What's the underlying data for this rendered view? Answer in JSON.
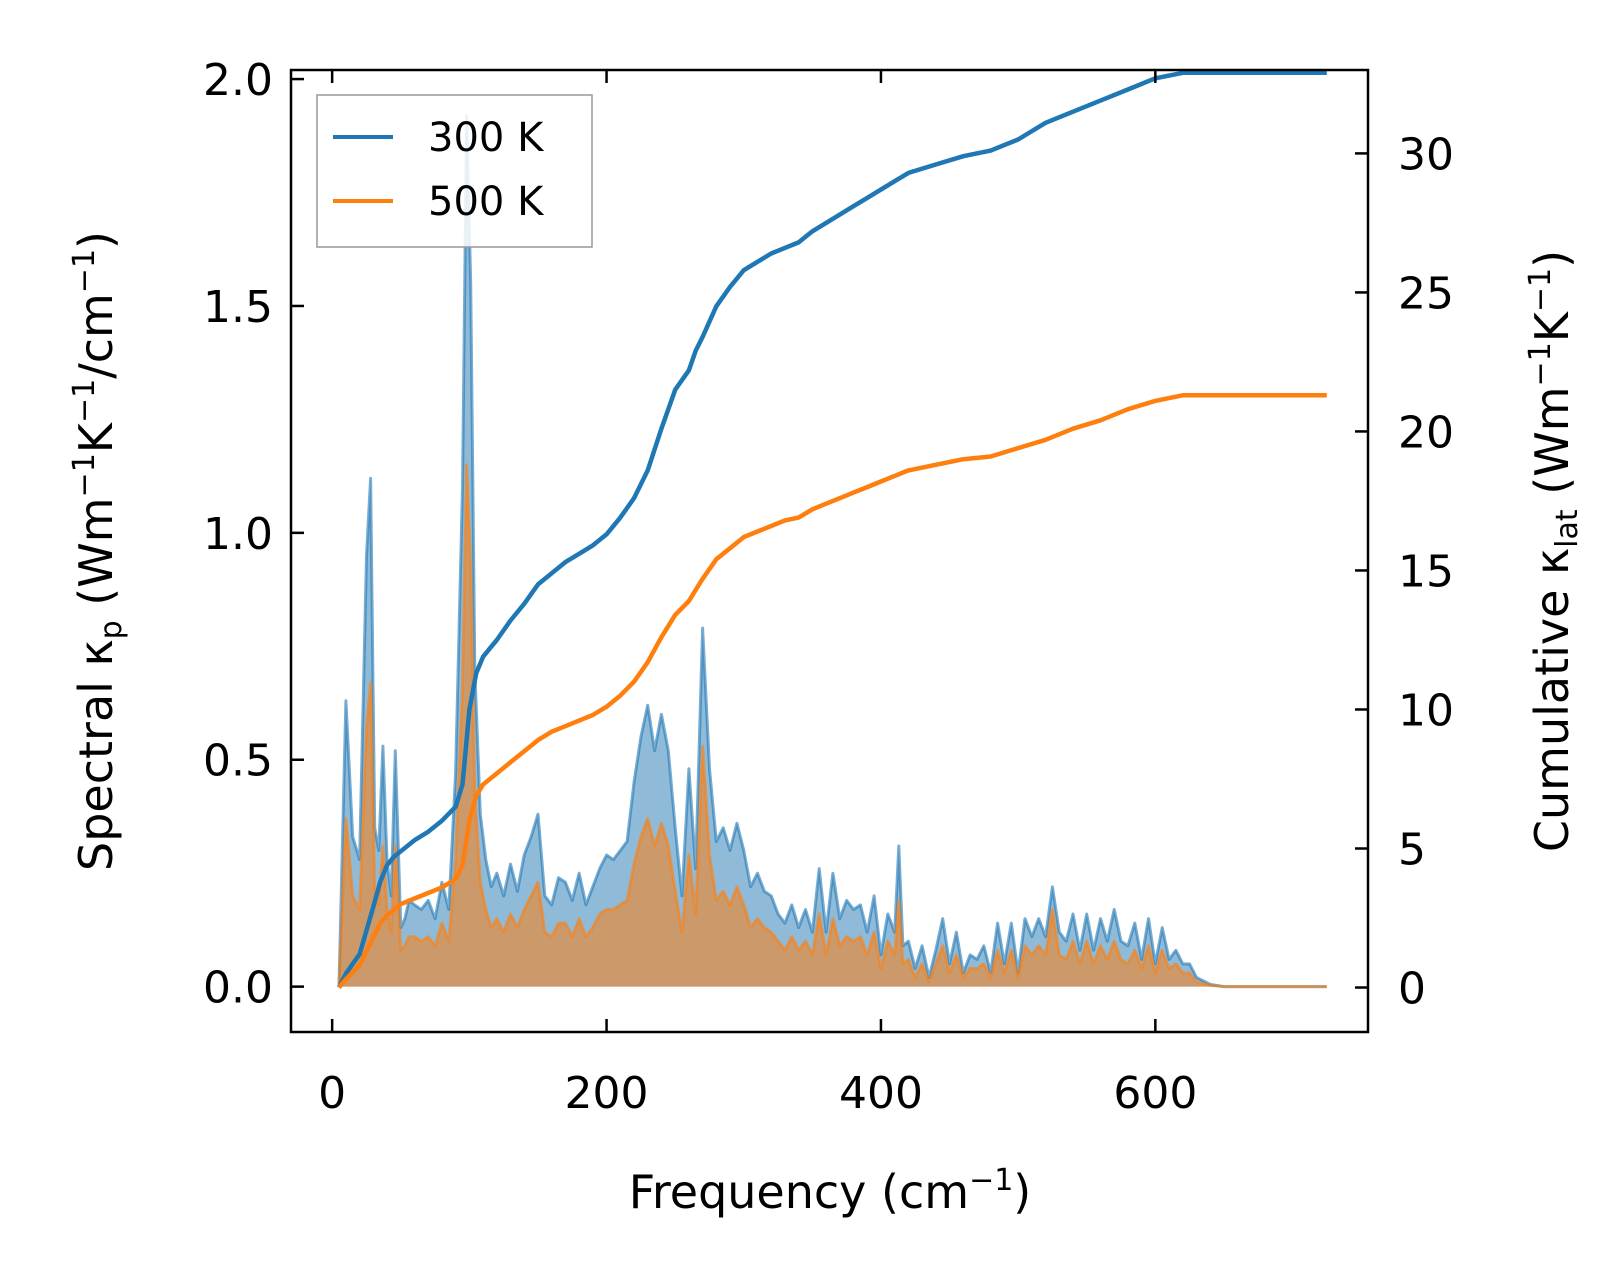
{
  "chart_data": {
    "type": "line",
    "title": "",
    "xlabel": "Frequency (cm",
    "xlabel_sup": "−1",
    "xlabel_end": ")",
    "ylabel_left": {
      "t1": "Spectral κ",
      "t1_sub": "p",
      "t2": " (Wm",
      "t2_sup": "−1",
      "t3": "K",
      "t3_sup": "−1",
      "t4": "/cm",
      "t4_sup": "−1",
      "t5": ")"
    },
    "ylabel_right": {
      "t1": "Cumulative κ",
      "t1_sub": "lat",
      "t2": " (Wm",
      "t2_sup": "−1",
      "t3": "K",
      "t3_sup": "−1",
      "t4": ")"
    },
    "xlim": [
      -30,
      755
    ],
    "ylim_left": [
      -0.1,
      2.02
    ],
    "ylim_right": [
      -1.6,
      33.0
    ],
    "x_ticks": [
      0,
      200,
      400,
      600
    ],
    "x_tick_labels": [
      "0",
      "200",
      "400",
      "600"
    ],
    "y_left_ticks": [
      0.0,
      0.5,
      1.0,
      1.5,
      2.0
    ],
    "y_left_tick_labels": [
      "0.0",
      "0.5",
      "1.0",
      "1.5",
      "2.0"
    ],
    "y_right_ticks": [
      0,
      5,
      10,
      15,
      20,
      25,
      30
    ],
    "y_right_tick_labels": [
      "0",
      "5",
      "10",
      "15",
      "20",
      "25",
      "30"
    ],
    "legend": {
      "position": "top-left",
      "entries": [
        {
          "label": "300 K",
          "color": "#1f77b4"
        },
        {
          "label": "500 K",
          "color": "#ff7f0e"
        }
      ]
    },
    "spectral_series": [
      {
        "name": "300 K",
        "color": "#1f77b4",
        "fill_color": "#1f77b4",
        "x": [
          5,
          10,
          15,
          20,
          25,
          28,
          31,
          34,
          37,
          40,
          43,
          46,
          50,
          53,
          56,
          60,
          65,
          70,
          75,
          80,
          85,
          90,
          95,
          98,
          101,
          104,
          108,
          112,
          116,
          120,
          125,
          130,
          135,
          140,
          145,
          150,
          155,
          160,
          165,
          170,
          175,
          180,
          185,
          190,
          195,
          200,
          205,
          210,
          215,
          220,
          225,
          230,
          235,
          240,
          245,
          250,
          255,
          260,
          265,
          270,
          275,
          280,
          285,
          290,
          295,
          300,
          305,
          310,
          315,
          320,
          325,
          330,
          335,
          340,
          345,
          350,
          355,
          360,
          365,
          370,
          375,
          380,
          385,
          390,
          395,
          400,
          405,
          410,
          413,
          416,
          420,
          425,
          430,
          435,
          440,
          445,
          450,
          455,
          460,
          465,
          470,
          475,
          480,
          485,
          490,
          495,
          500,
          505,
          510,
          515,
          520,
          525,
          530,
          535,
          540,
          545,
          550,
          555,
          560,
          565,
          570,
          575,
          580,
          585,
          590,
          595,
          600,
          605,
          610,
          615,
          620,
          625,
          630,
          640,
          650,
          660,
          680,
          700,
          725
        ],
        "values": [
          0.0,
          0.63,
          0.33,
          0.28,
          0.95,
          1.12,
          0.35,
          0.3,
          0.53,
          0.28,
          0.2,
          0.52,
          0.13,
          0.15,
          0.19,
          0.18,
          0.17,
          0.19,
          0.15,
          0.23,
          0.17,
          0.47,
          1.1,
          1.92,
          1.55,
          0.7,
          0.38,
          0.28,
          0.22,
          0.25,
          0.2,
          0.27,
          0.21,
          0.29,
          0.33,
          0.38,
          0.2,
          0.18,
          0.24,
          0.23,
          0.19,
          0.25,
          0.18,
          0.22,
          0.26,
          0.29,
          0.28,
          0.3,
          0.32,
          0.45,
          0.55,
          0.62,
          0.52,
          0.6,
          0.52,
          0.35,
          0.2,
          0.48,
          0.26,
          0.79,
          0.48,
          0.32,
          0.35,
          0.3,
          0.36,
          0.3,
          0.22,
          0.25,
          0.21,
          0.2,
          0.16,
          0.14,
          0.18,
          0.13,
          0.17,
          0.12,
          0.26,
          0.12,
          0.25,
          0.15,
          0.19,
          0.17,
          0.18,
          0.12,
          0.2,
          0.07,
          0.16,
          0.12,
          0.31,
          0.09,
          0.1,
          0.04,
          0.09,
          0.02,
          0.08,
          0.15,
          0.05,
          0.12,
          0.03,
          0.07,
          0.06,
          0.09,
          0.03,
          0.14,
          0.05,
          0.14,
          0.03,
          0.15,
          0.11,
          0.15,
          0.11,
          0.22,
          0.12,
          0.1,
          0.16,
          0.08,
          0.16,
          0.08,
          0.15,
          0.1,
          0.17,
          0.1,
          0.09,
          0.14,
          0.06,
          0.15,
          0.05,
          0.13,
          0.06,
          0.08,
          0.05,
          0.05,
          0.02,
          0.005,
          0.0,
          0.0,
          0.0,
          0.0,
          0.0
        ]
      },
      {
        "name": "500 K",
        "color": "#ff7f0e",
        "fill_color": "#ff7f0e",
        "x": [
          5,
          10,
          15,
          20,
          25,
          28,
          31,
          34,
          37,
          40,
          43,
          46,
          50,
          53,
          56,
          60,
          65,
          70,
          75,
          80,
          85,
          90,
          95,
          98,
          101,
          104,
          108,
          112,
          116,
          120,
          125,
          130,
          135,
          140,
          145,
          150,
          155,
          160,
          165,
          170,
          175,
          180,
          185,
          190,
          195,
          200,
          205,
          210,
          215,
          220,
          225,
          230,
          235,
          240,
          245,
          250,
          255,
          260,
          265,
          270,
          275,
          280,
          285,
          290,
          295,
          300,
          305,
          310,
          315,
          320,
          325,
          330,
          335,
          340,
          345,
          350,
          355,
          360,
          365,
          370,
          375,
          380,
          385,
          390,
          395,
          400,
          405,
          410,
          413,
          416,
          420,
          425,
          430,
          435,
          440,
          445,
          450,
          455,
          460,
          465,
          470,
          475,
          480,
          485,
          490,
          495,
          500,
          505,
          510,
          515,
          520,
          525,
          530,
          535,
          540,
          545,
          550,
          555,
          560,
          565,
          570,
          575,
          580,
          585,
          590,
          595,
          600,
          605,
          610,
          615,
          620,
          625,
          630,
          640,
          650,
          660,
          680,
          700,
          725
        ],
        "values": [
          0.0,
          0.37,
          0.2,
          0.17,
          0.57,
          0.67,
          0.21,
          0.18,
          0.31,
          0.17,
          0.12,
          0.31,
          0.08,
          0.09,
          0.11,
          0.11,
          0.1,
          0.11,
          0.09,
          0.14,
          0.1,
          0.28,
          0.66,
          1.15,
          0.93,
          0.42,
          0.23,
          0.17,
          0.13,
          0.15,
          0.12,
          0.16,
          0.13,
          0.17,
          0.2,
          0.23,
          0.12,
          0.11,
          0.14,
          0.14,
          0.11,
          0.15,
          0.11,
          0.13,
          0.16,
          0.17,
          0.17,
          0.18,
          0.19,
          0.27,
          0.33,
          0.37,
          0.31,
          0.36,
          0.31,
          0.21,
          0.12,
          0.29,
          0.16,
          0.53,
          0.29,
          0.19,
          0.21,
          0.18,
          0.22,
          0.18,
          0.13,
          0.15,
          0.13,
          0.12,
          0.1,
          0.08,
          0.11,
          0.08,
          0.1,
          0.07,
          0.16,
          0.07,
          0.15,
          0.09,
          0.11,
          0.1,
          0.11,
          0.07,
          0.12,
          0.04,
          0.1,
          0.07,
          0.19,
          0.05,
          0.06,
          0.02,
          0.05,
          0.01,
          0.05,
          0.09,
          0.03,
          0.07,
          0.02,
          0.04,
          0.04,
          0.05,
          0.02,
          0.08,
          0.03,
          0.08,
          0.02,
          0.09,
          0.07,
          0.09,
          0.07,
          0.17,
          0.07,
          0.06,
          0.1,
          0.05,
          0.1,
          0.05,
          0.09,
          0.06,
          0.1,
          0.06,
          0.05,
          0.08,
          0.04,
          0.09,
          0.03,
          0.08,
          0.04,
          0.05,
          0.03,
          0.03,
          0.01,
          0.003,
          0.0,
          0.0,
          0.0,
          0.0,
          0.0
        ]
      }
    ],
    "cumulative_series": [
      {
        "name": "300 K",
        "color": "#1f77b4",
        "x": [
          5,
          10,
          20,
          30,
          35,
          40,
          45,
          50,
          60,
          70,
          80,
          90,
          95,
          100,
          105,
          110,
          115,
          120,
          130,
          140,
          150,
          160,
          170,
          180,
          190,
          200,
          210,
          220,
          230,
          240,
          250,
          260,
          265,
          270,
          280,
          290,
          300,
          310,
          320,
          330,
          340,
          350,
          360,
          370,
          380,
          390,
          400,
          410,
          420,
          440,
          460,
          480,
          500,
          520,
          540,
          560,
          580,
          600,
          610,
          620,
          650,
          700,
          725
        ],
        "values": [
          0,
          0.5,
          1.2,
          2.9,
          3.8,
          4.4,
          4.7,
          4.9,
          5.3,
          5.6,
          6.0,
          6.5,
          7.3,
          10.0,
          11.3,
          11.9,
          12.2,
          12.5,
          13.2,
          13.8,
          14.5,
          14.9,
          15.3,
          15.6,
          15.9,
          16.3,
          16.9,
          17.6,
          18.6,
          20.1,
          21.5,
          22.2,
          22.9,
          23.4,
          24.5,
          25.2,
          25.8,
          26.1,
          26.4,
          26.6,
          26.8,
          27.2,
          27.5,
          27.8,
          28.1,
          28.4,
          28.7,
          29.0,
          29.3,
          29.6,
          29.9,
          30.1,
          30.5,
          31.1,
          31.5,
          31.9,
          32.3,
          32.7,
          32.8,
          32.9,
          32.9,
          32.9,
          32.9
        ]
      },
      {
        "name": "500 K",
        "color": "#ff7f0e",
        "x": [
          5,
          10,
          20,
          30,
          35,
          40,
          45,
          50,
          60,
          70,
          80,
          90,
          95,
          100,
          105,
          110,
          115,
          120,
          130,
          140,
          150,
          160,
          170,
          180,
          190,
          200,
          210,
          220,
          230,
          240,
          250,
          260,
          265,
          270,
          280,
          290,
          300,
          310,
          320,
          330,
          340,
          350,
          360,
          370,
          380,
          390,
          400,
          410,
          420,
          440,
          460,
          480,
          500,
          520,
          540,
          560,
          580,
          600,
          610,
          620,
          650,
          700,
          725
        ],
        "values": [
          0,
          0.3,
          0.8,
          1.8,
          2.3,
          2.6,
          2.8,
          3.0,
          3.2,
          3.4,
          3.6,
          3.9,
          4.4,
          6.0,
          6.9,
          7.3,
          7.5,
          7.7,
          8.1,
          8.5,
          8.9,
          9.2,
          9.4,
          9.6,
          9.8,
          10.1,
          10.5,
          11.0,
          11.7,
          12.6,
          13.4,
          13.9,
          14.3,
          14.7,
          15.4,
          15.8,
          16.2,
          16.4,
          16.6,
          16.8,
          16.9,
          17.2,
          17.4,
          17.6,
          17.8,
          18.0,
          18.2,
          18.4,
          18.6,
          18.8,
          19.0,
          19.1,
          19.4,
          19.7,
          20.1,
          20.4,
          20.8,
          21.1,
          21.2,
          21.3,
          21.3,
          21.3,
          21.3
        ]
      }
    ]
  }
}
